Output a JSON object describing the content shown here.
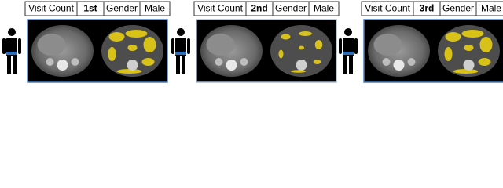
{
  "panels": [
    {
      "visit_label": "Visit Count",
      "visit": "1st",
      "gender_label": "Gender",
      "gender": "Male"
    },
    {
      "visit_label": "Visit Count",
      "visit": "2nd",
      "gender_label": "Gender",
      "gender": "Male"
    },
    {
      "visit_label": "Visit Count",
      "visit": "3rd",
      "gender_label": "Gender",
      "gender": "Male"
    }
  ]
}
